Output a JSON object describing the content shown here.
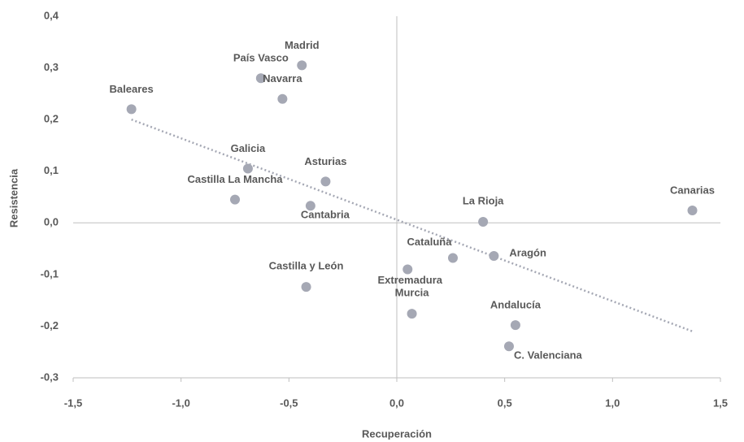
{
  "chart_data": {
    "type": "scatter",
    "x_label": "Recuperación",
    "y_label": "Resistencia",
    "series": [
      {
        "color": "#a5a8b4",
        "labels": [
          "Madrid",
          "País Vasco",
          "Navarra",
          "Baleares",
          "Galicia",
          "Asturias",
          "Castilla La Mancha",
          "Cantabria",
          "La Rioja",
          "Canarias",
          "Cataluña",
          "Aragón",
          "Extremadura",
          "Castilla y León",
          "Murcia",
          "Andalucía",
          "C. Valenciana"
        ],
        "x": [
          -0.44,
          -0.63,
          -0.53,
          -1.23,
          -0.69,
          -0.33,
          -0.75,
          -0.4,
          0.4,
          1.37,
          0.26,
          0.45,
          0.05,
          -0.42,
          0.07,
          0.55,
          0.52
        ],
        "y": [
          0.305,
          0.28,
          0.24,
          0.22,
          0.105,
          0.08,
          0.045,
          0.033,
          0.002,
          0.024,
          -0.068,
          -0.064,
          -0.09,
          -0.124,
          -0.176,
          -0.198,
          -0.239
        ]
      }
    ],
    "trendline": {
      "color": "#a5a8b4",
      "x": [
        -1.23,
        1.37
      ],
      "y": [
        0.2,
        -0.21
      ]
    },
    "xlim": [
      -1.5,
      1.5
    ],
    "ylim": [
      -0.3,
      0.4
    ],
    "xticks": [
      {
        "value": -1.5,
        "label": "-1,5"
      },
      {
        "value": -1.0,
        "label": "-1,0"
      },
      {
        "value": -0.5,
        "label": "-0,5"
      },
      {
        "value": 0,
        "label": "0,0"
      },
      {
        "value": 0.5,
        "label": "0,5"
      },
      {
        "value": 1.0,
        "label": "1,0"
      },
      {
        "value": 1.5,
        "label": "1,5"
      }
    ],
    "yticks": [
      {
        "value": 0.4,
        "label": "0,4"
      },
      {
        "value": 0.3,
        "label": "0,3"
      },
      {
        "value": 0.2,
        "label": "0,2"
      },
      {
        "value": 0.1,
        "label": "0,1"
      },
      {
        "value": 0,
        "label": "0,0"
      },
      {
        "value": -0.1,
        "label": "-0,1"
      },
      {
        "value": -0.2,
        "label": "-0,2"
      },
      {
        "value": -0.3,
        "label": "-0,3"
      }
    ]
  }
}
